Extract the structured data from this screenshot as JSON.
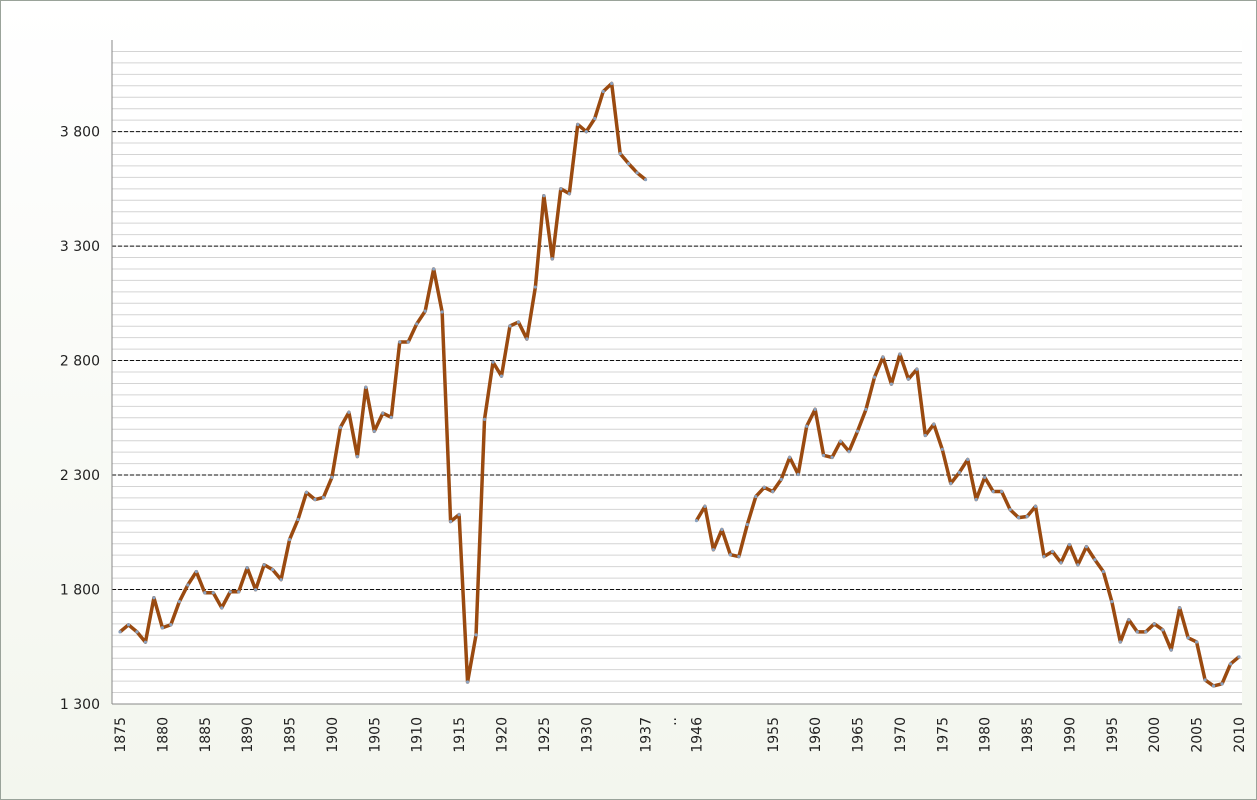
{
  "chart_data": {
    "type": "line",
    "categories": [
      "1875",
      null,
      null,
      null,
      null,
      "1880",
      null,
      null,
      null,
      null,
      "1885",
      null,
      null,
      null,
      null,
      "1890",
      null,
      null,
      null,
      null,
      "1895",
      null,
      null,
      null,
      null,
      "1900",
      null,
      null,
      null,
      null,
      "1905",
      null,
      null,
      null,
      null,
      "1910",
      null,
      null,
      null,
      null,
      "1915",
      null,
      null,
      null,
      null,
      "1920",
      null,
      null,
      null,
      null,
      "1925",
      null,
      null,
      null,
      null,
      "1930",
      null,
      null,
      null,
      null,
      null,
      null,
      "1937",
      null,
      null,
      "..",
      null,
      null,
      "1946",
      null,
      null,
      null,
      null,
      null,
      null,
      null,
      null,
      "1955",
      null,
      null,
      null,
      null,
      "1960",
      null,
      null,
      null,
      null,
      "1965",
      null,
      null,
      null,
      null,
      "1970",
      null,
      null,
      null,
      null,
      "1975",
      null,
      null,
      null,
      null,
      "1980",
      null,
      null,
      null,
      null,
      "1985",
      null,
      null,
      null,
      null,
      "1990",
      null,
      null,
      null,
      null,
      "1995",
      null,
      null,
      null,
      null,
      "2000",
      null,
      null,
      null,
      null,
      "2005",
      null,
      null,
      null,
      null,
      "2010"
    ],
    "values": [
      1615,
      1646,
      1615,
      1570,
      1764,
      1633,
      1646,
      1747,
      1820,
      1878,
      1786,
      1786,
      1720,
      1790,
      1790,
      1895,
      1799,
      1908,
      1887,
      1843,
      2018,
      2106,
      2224,
      2193,
      2202,
      2290,
      2508,
      2574,
      2381,
      2683,
      2491,
      2570,
      2552,
      2881,
      2881,
      2960,
      3016,
      3200,
      3012,
      2097,
      2127,
      1396,
      1602,
      2543,
      2793,
      2732,
      2951,
      2968,
      2894,
      3121,
      3520,
      3244,
      3550,
      3529,
      3831,
      3800,
      3857,
      3975,
      4010,
      3704,
      3660,
      3620,
      3590,
      null,
      null,
      null,
      null,
      null,
      2101,
      2163,
      1974,
      2062,
      1952,
      1944,
      2084,
      2206,
      2246,
      2228,
      2281,
      2377,
      2303,
      2513,
      2587,
      2386,
      2377,
      2447,
      2403,
      2491,
      2587,
      2727,
      2815,
      2697,
      2828,
      2719,
      2762,
      2473,
      2522,
      2412,
      2263,
      2311,
      2368,
      2193,
      2290,
      2228,
      2228,
      2149,
      2114,
      2119,
      2163,
      1944,
      1966,
      1917,
      1996,
      1908,
      1987,
      1930,
      1878,
      1747,
      1571,
      1668,
      1615,
      1615,
      1650,
      1624,
      1536,
      1720,
      1589,
      1571,
      1405,
      1379,
      1388,
      1475,
      1506
    ],
    "color": "#9a4a10",
    "marker_color": "#8aa2c0",
    "ylim": [
      1300,
      4200
    ],
    "yticks": [
      {
        "value": 1300,
        "label": "1 300"
      },
      {
        "value": 1800,
        "label": "1 800"
      },
      {
        "value": 2300,
        "label": "2 300"
      },
      {
        "value": 2800,
        "label": "2 800"
      },
      {
        "value": 3300,
        "label": "3 300"
      },
      {
        "value": 3800,
        "label": "3 800"
      }
    ],
    "grid": true,
    "minor_grid_step": 50
  }
}
